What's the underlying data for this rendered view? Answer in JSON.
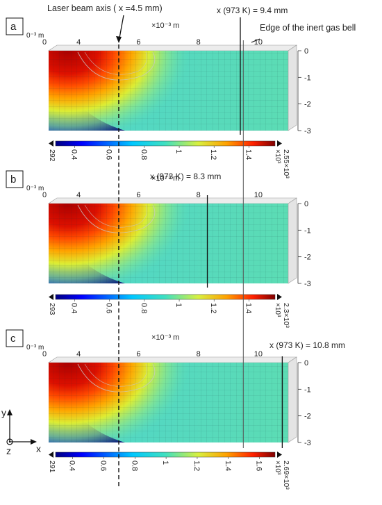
{
  "annotations": {
    "laser_axis": "Laser beam axis ( x =4.5 mm)",
    "gas_bell": "Edge of the inert gas bell",
    "inert_gas_bell_x_mm": 9.5
  },
  "axes": {
    "x_unit": "×10⁻³ m",
    "x_prefix": "0⁻³ m",
    "x_ticks": [
      "0",
      "4",
      "6",
      "8",
      "10"
    ],
    "y_ticks": [
      "0",
      "-1",
      "-2",
      "-3"
    ],
    "x_range_mm": [
      3,
      11
    ],
    "y_range_mm": [
      0,
      -3
    ]
  },
  "triad": {
    "x": "x",
    "y": "y",
    "z": "z"
  },
  "panels": [
    {
      "label": "a",
      "iso_x_mm": 9.4,
      "iso_label": "x (973 K) = 9.4 mm",
      "cb_min": "292",
      "cb_max": "2.55×10³",
      "cb_exp": "×10³",
      "cb_ticks": [
        "0.4",
        "0.6",
        "0.8",
        "1",
        "1.2",
        "1.4"
      ]
    },
    {
      "label": "b",
      "iso_x_mm": 8.3,
      "iso_label": "x (973 K) = 8.3 mm",
      "cb_min": "293",
      "cb_max": "2.3×10³",
      "cb_exp": "×10³",
      "cb_ticks": [
        "0.4",
        "0.6",
        "0.8",
        "1",
        "1.2",
        "1.4"
      ]
    },
    {
      "label": "c",
      "iso_x_mm": 10.8,
      "iso_label": "x (973 K) = 10.8 mm",
      "cb_min": "291",
      "cb_max": "2.69×10³",
      "cb_exp": "×10³",
      "cb_ticks": [
        "0.4",
        "0.6",
        "0.8",
        "1",
        "1.2",
        "1.4",
        "1.6"
      ]
    }
  ]
}
